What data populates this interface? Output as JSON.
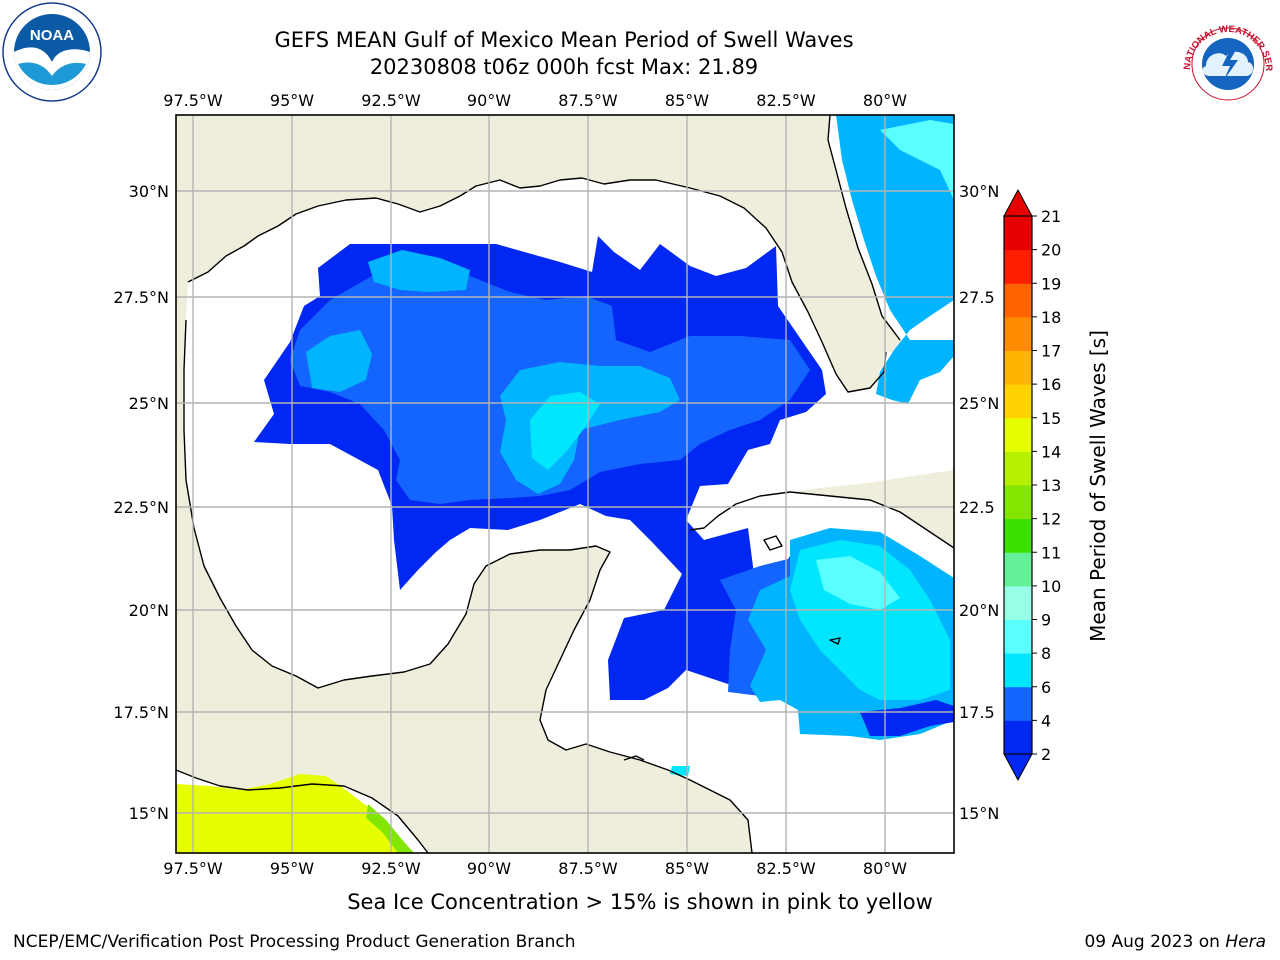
{
  "header": {
    "title_line1": "GEFS MEAN Gulf of Mexico Mean Period of Swell Waves",
    "title_line2": "20230808 t06z 000h fcst   Max: 21.89"
  },
  "logos": {
    "left": {
      "icon": "noaa-logo",
      "text": "NOAA"
    },
    "right": {
      "icon": "national-weather-service-logo",
      "text": "NATIONAL WEATHER SERVICE"
    }
  },
  "map": {
    "lon_labels": [
      "97.5°W",
      "95°W",
      "92.5°W",
      "90°W",
      "87.5°W",
      "85°W",
      "82.5°W",
      "80°W"
    ],
    "lat_labels_left": [
      "30°N",
      "27.5°N",
      "25°N",
      "22.5°N",
      "20°N",
      "17.5°N",
      "15°N"
    ],
    "lat_labels_right": [
      "30°N",
      "27.5",
      "25°N",
      "22.5",
      "20°N",
      "17.5",
      "15°N"
    ],
    "colors": {
      "land": "#efeedc",
      "ocean": "#ffffff",
      "grid": "#b4b4b4",
      "coast": "#000000"
    }
  },
  "colorbar": {
    "label": "Mean Period of Swell Waves [s]",
    "ticks": [
      "2",
      "4",
      "6",
      "8",
      "9",
      "10",
      "11",
      "12",
      "13",
      "14",
      "15",
      "16",
      "17",
      "18",
      "19",
      "20",
      "21"
    ],
    "colors": [
      "#0028f2",
      "#1464ff",
      "#00b4ff",
      "#00e6ff",
      "#5affff",
      "#96ffe6",
      "#64f096",
      "#1ef020",
      "#3ce100",
      "#82e600",
      "#b4f000",
      "#e6ff00",
      "#ffee00",
      "#ffd200",
      "#ffb400",
      "#ff8c00",
      "#ff6400",
      "#ff3c00",
      "#ff1e00",
      "#e60000"
    ]
  },
  "footer": {
    "note": "Sea Ice Concentration > 15% is shown in pink to yellow",
    "credit": "NCEP/EMC/Verification Post Processing Product Generation Branch",
    "date": "09 Aug 2023 on",
    "machine": "Hera"
  }
}
